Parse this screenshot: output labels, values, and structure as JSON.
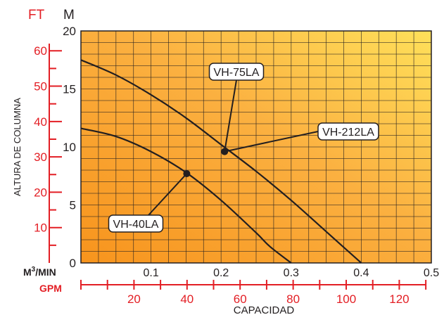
{
  "chart_data": {
    "type": "line",
    "title": "",
    "xlabel": "CAPACIDAD",
    "ylabel": "ALTURA DE COLUMNA",
    "units": {
      "ft": "FT",
      "m": "M",
      "m3min_prefix": "M",
      "m3min_sup": "3",
      "m3min_suffix": "/MIN",
      "gpm": "GPM"
    },
    "xlim": [
      0,
      0.5
    ],
    "ylim": [
      0,
      20
    ],
    "grid": true,
    "x_ticks_m3min": [
      0.1,
      0.2,
      0.3,
      0.4,
      0.5
    ],
    "x_ticks_gpm": [
      20,
      40,
      60,
      80,
      100,
      120
    ],
    "y_ticks_m": [
      0,
      5,
      10,
      15,
      20
    ],
    "y_ticks_ft": [
      10,
      20,
      30,
      40,
      50,
      60
    ],
    "series": [
      {
        "name": "VH-212LA",
        "x": [
          0,
          0.05,
          0.1,
          0.15,
          0.2,
          0.25,
          0.3,
          0.35,
          0.4
        ],
        "y": [
          17.5,
          16.2,
          14.5,
          12.5,
          10.2,
          7.9,
          5.4,
          2.7,
          0
        ]
      },
      {
        "name": "VH-40LA",
        "x": [
          0,
          0.05,
          0.1,
          0.15,
          0.2,
          0.25,
          0.27,
          0.3
        ],
        "y": [
          11.6,
          10.9,
          9.6,
          7.8,
          5.4,
          2.6,
          1.4,
          0
        ]
      }
    ],
    "annotations": [
      {
        "text": "VH-75LA",
        "point": [
          0.205,
          9.6
        ]
      },
      {
        "text": "VH-212LA",
        "point": [
          0.205,
          9.6
        ]
      },
      {
        "text": "VH-40LA",
        "point": [
          0.151,
          7.7
        ]
      }
    ]
  }
}
